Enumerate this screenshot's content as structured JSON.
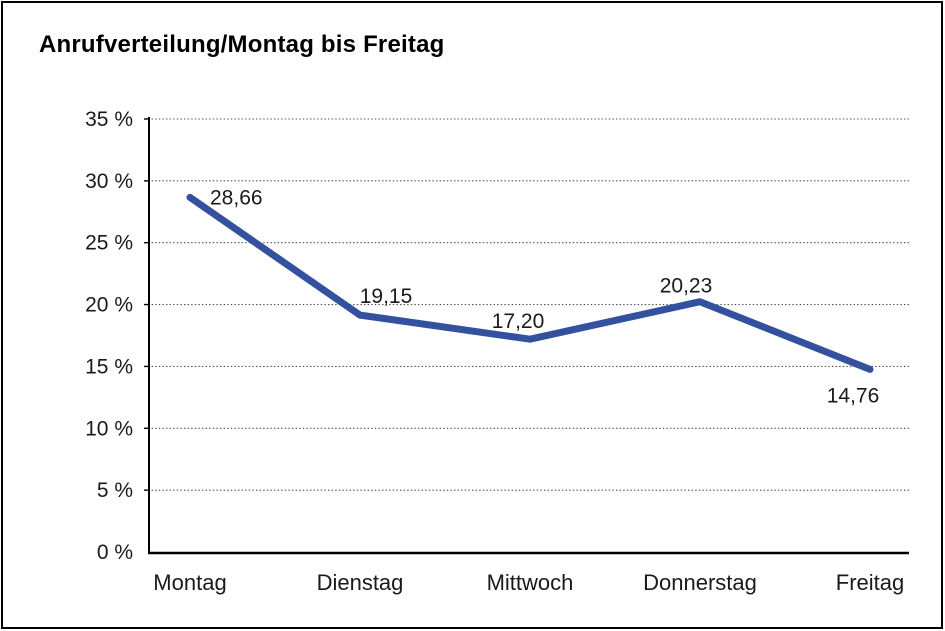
{
  "title": "Anrufverteilung/Montag bis Freitag",
  "chart_data": {
    "type": "line",
    "title": "Anrufverteilung/Montag bis Freitag",
    "categories": [
      "Montag",
      "Dienstag",
      "Mittwoch",
      "Donnerstag",
      "Freitag"
    ],
    "values": [
      28.66,
      19.15,
      17.2,
      20.23,
      14.76
    ],
    "point_labels": [
      "28,66",
      "19,15",
      "17,20",
      "20,23",
      "14,76"
    ],
    "xlabel": "",
    "ylabel": "",
    "ylim": [
      0,
      35
    ],
    "ytick_step": 5,
    "ytick_labels": [
      "0 %",
      "5 %",
      "10 %",
      "15 %",
      "20 %",
      "25 %",
      "30 %",
      "35 %"
    ],
    "grid": "horizontal-dotted",
    "legend_position": "none",
    "line_color": "#33519e",
    "axis_color": "#000000",
    "gridline_color": "#4d4d4d",
    "label_color": "#1a1a1a",
    "point_label_anchors": [
      "start",
      "middle",
      "middle",
      "middle",
      "middle"
    ],
    "point_label_dx": [
      20,
      26,
      -12,
      -14,
      -17
    ],
    "point_label_dy": [
      7,
      -12,
      -11,
      -9,
      33
    ]
  }
}
